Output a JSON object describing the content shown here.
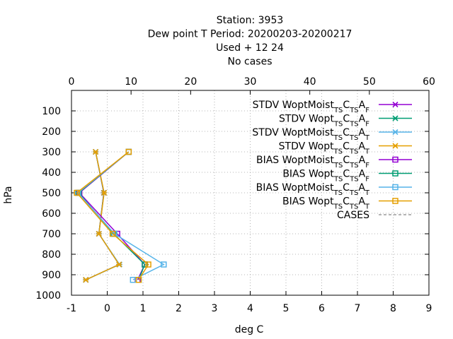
{
  "chart_data": {
    "type": "line",
    "title_lines": [
      "Station:     3953",
      "Dew point T  Period: 20200203-20200217",
      "Used   + 12 24",
      "No cases"
    ],
    "xlabel": "deg C",
    "ylabel": "hPa",
    "x2label": "",
    "xlim": [
      -1,
      9
    ],
    "x2lim": [
      0,
      60
    ],
    "ylim": [
      1000,
      0
    ],
    "x_ticks": [
      -1,
      0,
      1,
      2,
      3,
      4,
      5,
      6,
      7,
      8,
      9
    ],
    "x2_ticks": [
      0,
      10,
      20,
      30,
      40,
      50,
      60
    ],
    "y_ticks": [
      100,
      200,
      300,
      400,
      500,
      600,
      700,
      800,
      900,
      1000
    ],
    "grid": true,
    "legend_position": "top-right",
    "legend_labels": [
      {
        "main": "STDV WoptMoist",
        "subs": [
          "TS",
          "C",
          "TS",
          "A",
          "F"
        ]
      },
      {
        "main": "STDV Wopt",
        "subs": [
          "TS",
          "C",
          "TS",
          "A",
          "F"
        ]
      },
      {
        "main": "STDV WoptMoist",
        "subs": [
          "TS",
          "C",
          "TS",
          "A",
          "T"
        ]
      },
      {
        "main": "STDV Wopt",
        "subs": [
          "TS",
          "C",
          "TS",
          "A",
          "T"
        ]
      },
      {
        "main": "BIAS WoptMoist",
        "subs": [
          "TS",
          "C",
          "TS",
          "A",
          "F"
        ]
      },
      {
        "main": "BIAS Wopt",
        "subs": [
          "TS",
          "C",
          "TS",
          "A",
          "F"
        ]
      },
      {
        "main": "BIAS WoptMoist",
        "subs": [
          "TS",
          "C",
          "TS",
          "A",
          "T"
        ]
      },
      {
        "main": "BIAS Wopt",
        "subs": [
          "TS",
          "C",
          "TS",
          "A",
          "T"
        ]
      }
    ],
    "cases_label": "CASES",
    "levels": [
      300,
      500,
      700,
      850,
      925
    ],
    "series": [
      {
        "kind": "stdv",
        "marker": "x",
        "color": "#9400d3",
        "values": [
          4.05,
          5.42,
          4.6,
          8.0,
          2.4
        ]
      },
      {
        "kind": "stdv",
        "marker": "x",
        "color": "#009e73",
        "values": [
          4.05,
          5.44,
          4.6,
          8.0,
          2.4
        ]
      },
      {
        "kind": "stdv",
        "marker": "x",
        "color": "#56b4e9",
        "values": [
          4.05,
          5.46,
          4.6,
          8.08,
          2.4
        ]
      },
      {
        "kind": "stdv",
        "marker": "x",
        "color": "#e69f00",
        "values": [
          4.05,
          5.48,
          4.6,
          8.0,
          2.4
        ]
      },
      {
        "kind": "bias",
        "marker": "sq",
        "color": "#9400d3",
        "values": [
          0.6,
          -0.78,
          0.28,
          1.05,
          0.85
        ]
      },
      {
        "kind": "bias",
        "marker": "sq",
        "color": "#009e73",
        "values": [
          0.6,
          -0.8,
          0.18,
          1.05,
          0.88
        ]
      },
      {
        "kind": "bias",
        "marker": "sq",
        "color": "#56b4e9",
        "values": [
          0.6,
          -0.82,
          0.2,
          1.58,
          0.72
        ]
      },
      {
        "kind": "bias",
        "marker": "sq",
        "color": "#e69f00",
        "values": [
          0.6,
          -0.85,
          0.15,
          1.15,
          0.88
        ]
      }
    ]
  }
}
